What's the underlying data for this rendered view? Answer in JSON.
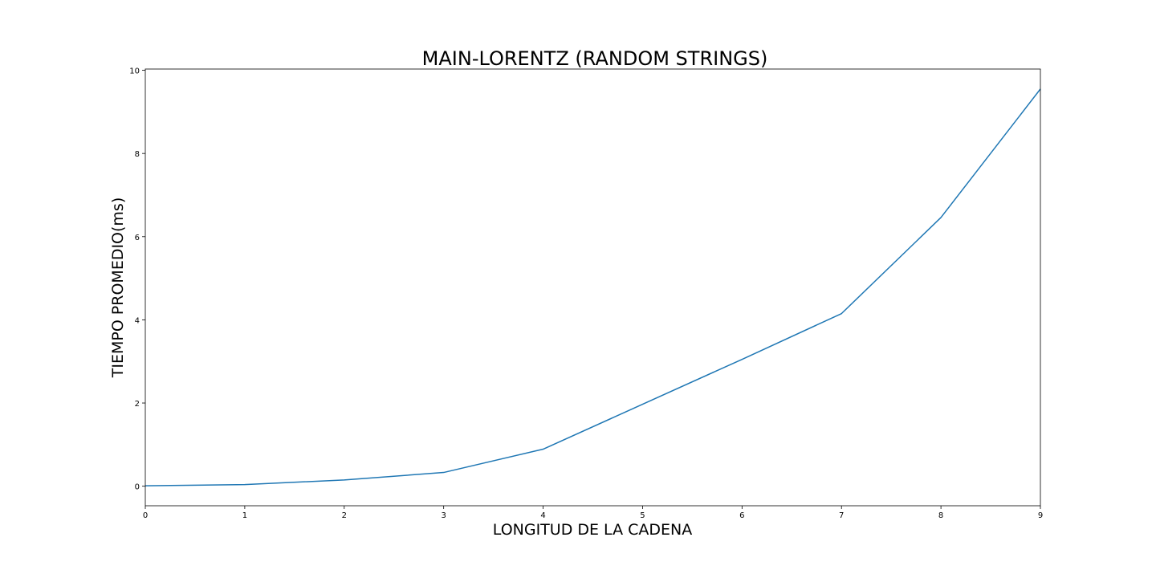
{
  "chart_data": {
    "type": "line",
    "title": "MAIN-LORENTZ (RANDOM STRINGS)",
    "xlabel": "LONGITUD DE LA CADENA",
    "ylabel": "TIEMPO PROMEDIO(ms)",
    "x": [
      0,
      1,
      2,
      3,
      4,
      5,
      6,
      7,
      8,
      9
    ],
    "series": [
      {
        "values": [
          0.01,
          0.04,
          0.15,
          0.33,
          0.89,
          1.97,
          3.05,
          4.15,
          6.46,
          9.55
        ],
        "color": "#1f77b4"
      }
    ],
    "xlim": [
      0,
      9
    ],
    "ylim": [
      -0.47,
      10.03
    ],
    "xticks": [
      "0",
      "1",
      "2",
      "3",
      "4",
      "5",
      "6",
      "7",
      "8",
      "9"
    ],
    "yticks": [
      "0",
      "2",
      "4",
      "6",
      "8",
      "10"
    ],
    "grid": false,
    "legend": "none"
  }
}
